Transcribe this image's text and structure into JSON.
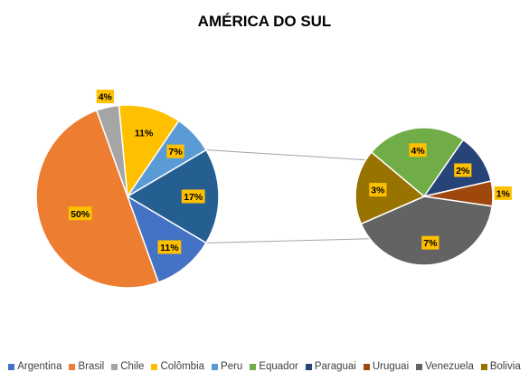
{
  "chart_data": {
    "type": "pie",
    "subtype": "pie-of-pie",
    "title": "AMÉRICA DO SUL",
    "unit": "%",
    "legend_position": "bottom",
    "main_pie": [
      {
        "name": "Argentina",
        "value": 11,
        "label": "11%",
        "color": "#4472C4"
      },
      {
        "name": "Brasil",
        "value": 50,
        "label": "50%",
        "color": "#ED7D31"
      },
      {
        "name": "Chile",
        "value": 4,
        "label": "4%",
        "color": "#A5A5A5"
      },
      {
        "name": "Colômbia",
        "value": 11,
        "label": "11%",
        "color": "#FFC000"
      },
      {
        "name": "Peru",
        "value": 7,
        "label": "7%",
        "color": "#5B9BD5"
      },
      {
        "name": "",
        "value": 17,
        "label": "17%",
        "color": "#255E91",
        "is_other": true
      }
    ],
    "secondary_pie": [
      {
        "name": "Equador",
        "value": 4,
        "label": "4%",
        "color": "#70AD47"
      },
      {
        "name": "Paraguai",
        "value": 2,
        "label": "2%",
        "color": "#264478"
      },
      {
        "name": "Uruguai",
        "value": 1,
        "label": "1%",
        "color": "#9E480E"
      },
      {
        "name": "Venezuela",
        "value": 7,
        "label": "7%",
        "color": "#636363"
      },
      {
        "name": "Bolivia",
        "value": 3,
        "label": "3%",
        "color": "#997300"
      }
    ],
    "legend": [
      {
        "name": "Argentina",
        "color": "#4472C4"
      },
      {
        "name": "Brasil",
        "color": "#ED7D31"
      },
      {
        "name": "Chile",
        "color": "#A5A5A5"
      },
      {
        "name": "Colômbia",
        "color": "#FFC000"
      },
      {
        "name": "Peru",
        "color": "#5B9BD5"
      },
      {
        "name": "Equador",
        "color": "#70AD47"
      },
      {
        "name": "Paraguai",
        "color": "#264478"
      },
      {
        "name": "Uruguai",
        "color": "#9E480E"
      },
      {
        "name": "Venezuela",
        "color": "#636363"
      },
      {
        "name": "Bolivia",
        "color": "#997300"
      }
    ],
    "label_box_color": "#FFC000",
    "connector_color": "#A5A5A5"
  }
}
